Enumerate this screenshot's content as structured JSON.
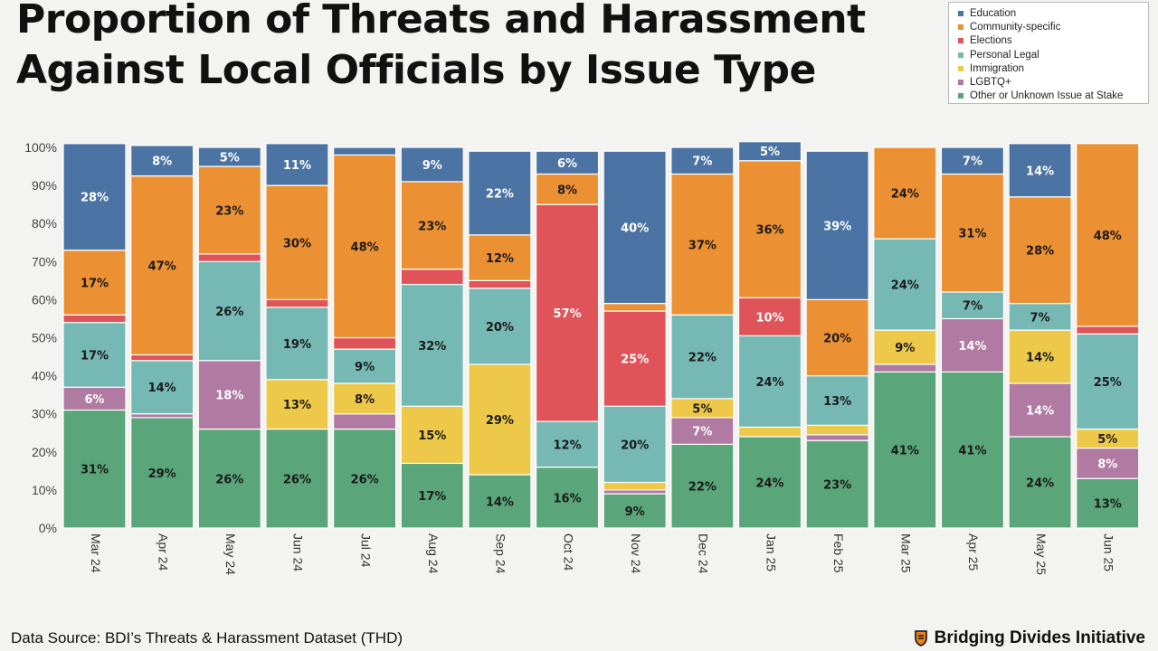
{
  "title": {
    "line1": "Proportion of Threats and Harassment",
    "line2": "Against Local Officials by Issue Type"
  },
  "footer": {
    "source": "Data Source: BDI’s Threats & Harassment Dataset (THD)",
    "brand": "Bridging Divides Initiative"
  },
  "colors": {
    "Education": "#4b73a3",
    "Community-specific": "#ec9034",
    "Elections": "#e05459",
    "Personal Legal": "#76b8b4",
    "Immigration": "#edc849",
    "LGBTQ+": "#b07aa2",
    "Other or Unknown Issue at Stake": "#5aa579"
  },
  "chart_data": {
    "type": "bar",
    "stacked": true,
    "legend_position": "top-right",
    "grid": false,
    "ylim": [
      0,
      100
    ],
    "yticks": [
      "0%",
      "10%",
      "20%",
      "30%",
      "40%",
      "50%",
      "60%",
      "70%",
      "80%",
      "90%",
      "100%"
    ],
    "categories": [
      "Mar 24",
      "Apr 24",
      "May 24",
      "Jun 24",
      "Jul 24",
      "Aug 24",
      "Sep 24",
      "Oct 24",
      "Nov 24",
      "Dec 24",
      "Jan 25",
      "Feb 25",
      "Mar 25",
      "Apr 25",
      "May 25",
      "Jun 25"
    ],
    "series": [
      {
        "name": "Other or Unknown Issue at Stake",
        "values": [
          31,
          29,
          26,
          26,
          26,
          17,
          14,
          16,
          9,
          22,
          24,
          23,
          41,
          41,
          24,
          13
        ],
        "labels": [
          "31%",
          "29%",
          "26%",
          "26%",
          "26%",
          "17%",
          "14%",
          "16%",
          "9%",
          "22%",
          "24%",
          "23%",
          "41%",
          "41%",
          "24%",
          "13%"
        ]
      },
      {
        "name": "LGBTQ+",
        "values": [
          6,
          1,
          18,
          0,
          4,
          0,
          0,
          0,
          1,
          7,
          0,
          1.5,
          2,
          14,
          14,
          8
        ],
        "labels": [
          "6%",
          "",
          "18%",
          "",
          "",
          "",
          "",
          "",
          "",
          "7%",
          "",
          "",
          "",
          "14%",
          "14%",
          "8%"
        ]
      },
      {
        "name": "Immigration",
        "values": [
          0,
          0,
          0,
          13,
          8,
          15,
          29,
          0,
          2,
          5,
          2.5,
          2.5,
          9,
          0,
          14,
          5
        ],
        "labels": [
          "",
          "",
          "",
          "13%",
          "8%",
          "15%",
          "29%",
          "",
          "",
          "5%",
          "",
          "",
          "9%",
          "",
          "14%",
          "5%"
        ]
      },
      {
        "name": "Personal Legal",
        "values": [
          17,
          14,
          26,
          19,
          9,
          32,
          20,
          12,
          20,
          22,
          24,
          13,
          24,
          7,
          7,
          25
        ],
        "labels": [
          "17%",
          "14%",
          "26%",
          "19%",
          "9%",
          "32%",
          "20%",
          "12%",
          "20%",
          "22%",
          "24%",
          "13%",
          "24%",
          "7%",
          "7%",
          "25%"
        ]
      },
      {
        "name": "Elections",
        "values": [
          2,
          1.5,
          2,
          2,
          3,
          4,
          2,
          57,
          25,
          0,
          10,
          0,
          0,
          0,
          0,
          2
        ],
        "labels": [
          "",
          "",
          "",
          "",
          "",
          "",
          "",
          "57%",
          "25%",
          "",
          "10%",
          "",
          "",
          "",
          "",
          ""
        ]
      },
      {
        "name": "Community-specific",
        "values": [
          17,
          47,
          23,
          30,
          48,
          23,
          12,
          8,
          2,
          37,
          36,
          20,
          24,
          31,
          28,
          48
        ],
        "labels": [
          "17%",
          "47%",
          "23%",
          "30%",
          "48%",
          "23%",
          "12%",
          "8%",
          "",
          "37%",
          "36%",
          "20%",
          "24%",
          "31%",
          "28%",
          "48%"
        ]
      },
      {
        "name": "Education",
        "values": [
          28,
          8,
          5,
          11,
          2,
          9,
          22,
          6,
          40,
          7,
          5,
          39,
          0,
          7,
          14,
          0
        ],
        "labels": [
          "28%",
          "8%",
          "5%",
          "11%",
          "",
          "9%",
          "22%",
          "6%",
          "40%",
          "7%",
          "5%",
          "39%",
          "",
          "7%",
          "14%",
          ""
        ]
      }
    ],
    "legend_order": [
      "Education",
      "Community-specific",
      "Elections",
      "Personal Legal",
      "Immigration",
      "LGBTQ+",
      "Other or Unknown Issue at Stake"
    ],
    "white_label_series": [
      "Education",
      "Elections",
      "LGBTQ+"
    ]
  }
}
